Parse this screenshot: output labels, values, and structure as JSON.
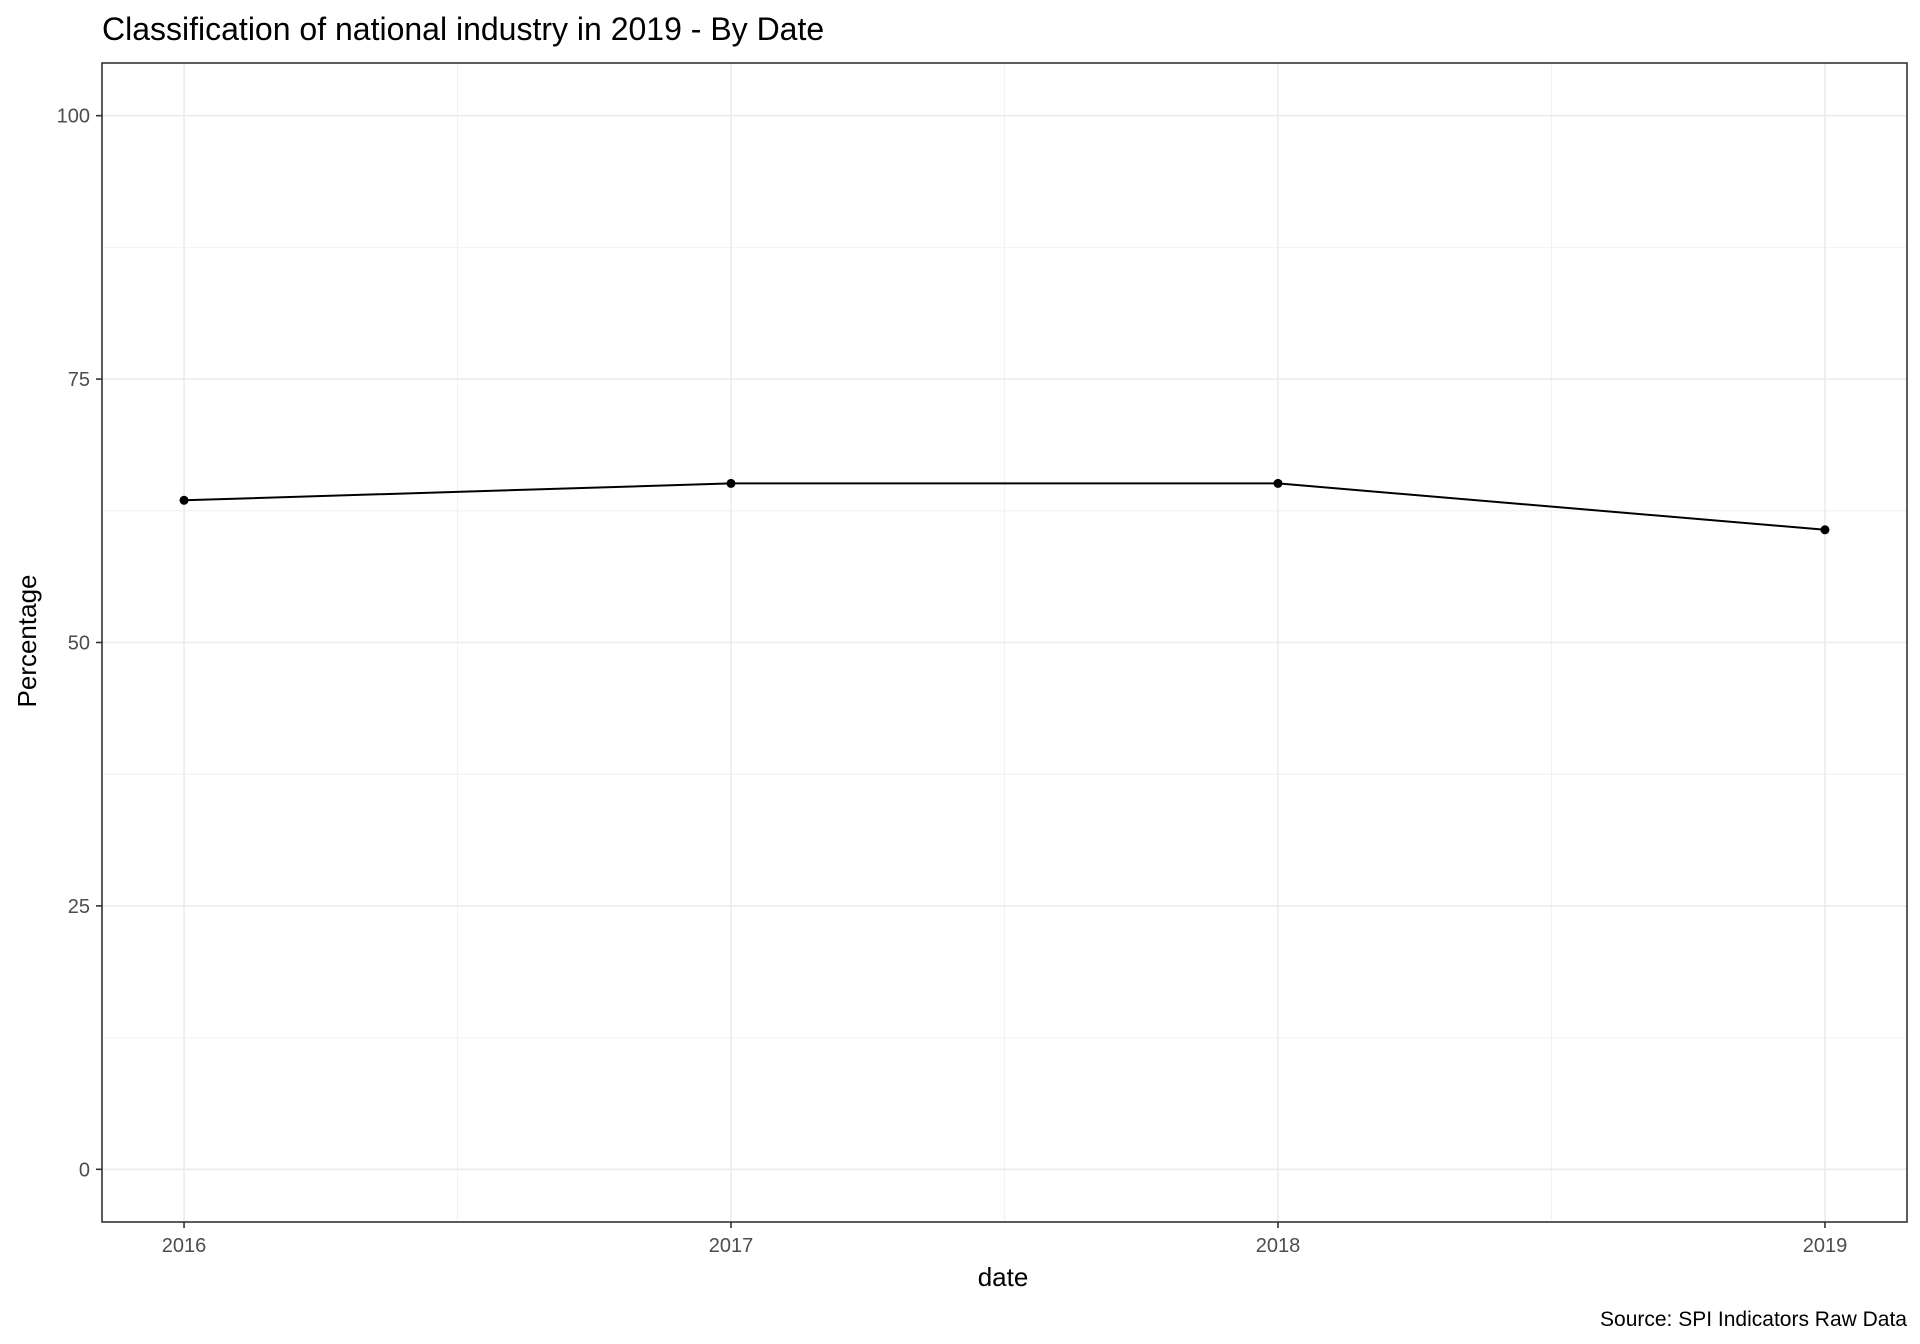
{
  "chart_data": {
    "type": "line",
    "title": "Classification of national industry in 2019 - By Date",
    "xlabel": "date",
    "ylabel": "Percentage",
    "caption": "Source: SPI Indicators Raw Data",
    "x": [
      2016,
      2017,
      2018,
      2019
    ],
    "x_tick_labels": [
      "2016",
      "2017",
      "2018",
      "2019"
    ],
    "y_ticks": [
      0,
      25,
      50,
      75,
      100
    ],
    "y_tick_labels": [
      "0",
      "25",
      "50",
      "75",
      "100"
    ],
    "ylim": [
      -5,
      105
    ],
    "xlim": [
      2015.85,
      2019.15
    ],
    "series": [
      {
        "values": [
          63.5,
          65.1,
          65.1,
          60.7
        ],
        "color": "#000000"
      }
    ],
    "grid": true,
    "legend": "none",
    "theme_colors": {
      "panel_border": "#333333",
      "grid": "#ebebeb",
      "tick_label": "#4d4d4d"
    }
  }
}
